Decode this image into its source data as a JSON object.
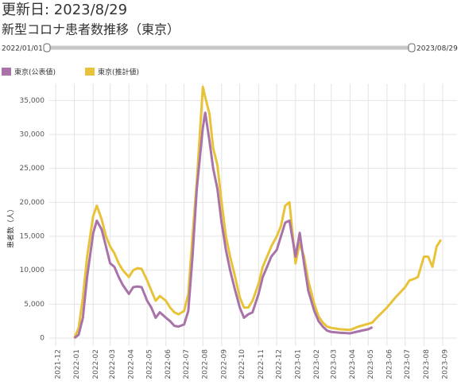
{
  "header": {
    "updated": "更新日: 2023/8/29"
  },
  "slider": {
    "start": "2022/01/01",
    "end": "2023/08/29"
  },
  "chart_data": {
    "type": "line",
    "title": "新型コロナ患者数推移（東京）",
    "y_label": "患者数（人）",
    "x": [
      "2022-01-01",
      "2022-01-08",
      "2022-01-15",
      "2022-01-22",
      "2022-02-01",
      "2022-02-07",
      "2022-02-15",
      "2022-02-22",
      "2022-03-01",
      "2022-03-08",
      "2022-03-15",
      "2022-03-22",
      "2022-04-01",
      "2022-04-08",
      "2022-04-15",
      "2022-04-22",
      "2022-05-01",
      "2022-05-08",
      "2022-05-15",
      "2022-05-22",
      "2022-06-01",
      "2022-06-08",
      "2022-06-15",
      "2022-06-22",
      "2022-07-01",
      "2022-07-08",
      "2022-07-15",
      "2022-07-22",
      "2022-08-01",
      "2022-08-05",
      "2022-08-12",
      "2022-08-18",
      "2022-08-25",
      "2022-09-01",
      "2022-09-08",
      "2022-09-15",
      "2022-09-22",
      "2022-10-01",
      "2022-10-08",
      "2022-10-15",
      "2022-10-22",
      "2022-11-01",
      "2022-11-08",
      "2022-11-15",
      "2022-11-22",
      "2022-12-01",
      "2022-12-08",
      "2022-12-15",
      "2022-12-22",
      "2023-01-01",
      "2023-01-08",
      "2023-01-15",
      "2023-01-22",
      "2023-02-01",
      "2023-02-08",
      "2023-02-15",
      "2023-02-22",
      "2023-03-01",
      "2023-03-15",
      "2023-04-01",
      "2023-04-15",
      "2023-05-01",
      "2023-05-08",
      "2023-05-15",
      "2023-06-01",
      "2023-06-15",
      "2023-07-01",
      "2023-07-08",
      "2023-07-15",
      "2023-07-22",
      "2023-08-01",
      "2023-08-08",
      "2023-08-15",
      "2023-08-22",
      "2023-08-29"
    ],
    "series": [
      {
        "name": "東京(公表値)",
        "color": "#a873a8",
        "values": [
          0,
          500,
          3000,
          9000,
          15500,
          17300,
          16000,
          13500,
          11000,
          10500,
          9000,
          7800,
          6500,
          7500,
          7600,
          7500,
          5500,
          4500,
          3000,
          3800,
          3000,
          2500,
          1800,
          1700,
          2000,
          4000,
          12000,
          22000,
          31000,
          33200,
          29000,
          25000,
          22000,
          17000,
          13000,
          10000,
          7500,
          4500,
          3000,
          3500,
          3800,
          6500,
          9000,
          10500,
          12000,
          13000,
          15000,
          17000,
          17300,
          12000,
          15500,
          11000,
          7000,
          4000,
          2500,
          1700,
          1100,
          900,
          800,
          700,
          1000,
          1300,
          1600,
          null,
          null,
          null,
          null,
          null,
          null,
          null,
          null,
          null,
          null,
          null,
          null
        ]
      },
      {
        "name": "東京(推計値)",
        "color": "#e8c33a",
        "values": [
          0,
          1500,
          6000,
          12000,
          18000,
          19500,
          17500,
          15000,
          13500,
          12500,
          11000,
          10000,
          9000,
          10000,
          10300,
          10200,
          8500,
          7000,
          5500,
          6200,
          5500,
          4500,
          3800,
          3500,
          4000,
          6500,
          15000,
          23000,
          37000,
          35500,
          33000,
          28000,
          25500,
          20000,
          15000,
          12000,
          9500,
          6000,
          4500,
          4500,
          5500,
          8000,
          10500,
          12000,
          13500,
          15000,
          16500,
          19500,
          20000,
          11000,
          14000,
          12000,
          8500,
          5000,
          3200,
          2300,
          1700,
          1500,
          1300,
          1200,
          1700,
          2100,
          2300,
          3000,
          4500,
          6000,
          7500,
          8500,
          8700,
          9000,
          12000,
          12000,
          10500,
          13500,
          14500
        ]
      }
    ],
    "xlim": [
      "2021-12-01",
      "2023-09-01"
    ],
    "xticks": [
      "2021-12",
      "2022-01",
      "2022-02",
      "2022-03",
      "2022-04",
      "2022-05",
      "2022-06",
      "2022-07",
      "2022-08",
      "2022-09",
      "2022-10",
      "2022-11",
      "2022-12",
      "2023-01",
      "2023-02",
      "2023-03",
      "2023-04",
      "2023-05",
      "2023-06",
      "2023-07",
      "2023-08",
      "2023-09"
    ],
    "ylim": [
      0,
      37500
    ],
    "yticks": [
      0,
      {
        "value": 5000,
        "label": "5,000"
      },
      {
        "value": 10000,
        "label": "10,000"
      },
      {
        "value": 15000,
        "label": "15,000"
      },
      {
        "value": 20000,
        "label": "20,000"
      },
      {
        "value": 25000,
        "label": "25,000"
      },
      {
        "value": 30000,
        "label": "30,000"
      },
      {
        "value": 35000,
        "label": "35,000"
      }
    ],
    "grid": true
  }
}
